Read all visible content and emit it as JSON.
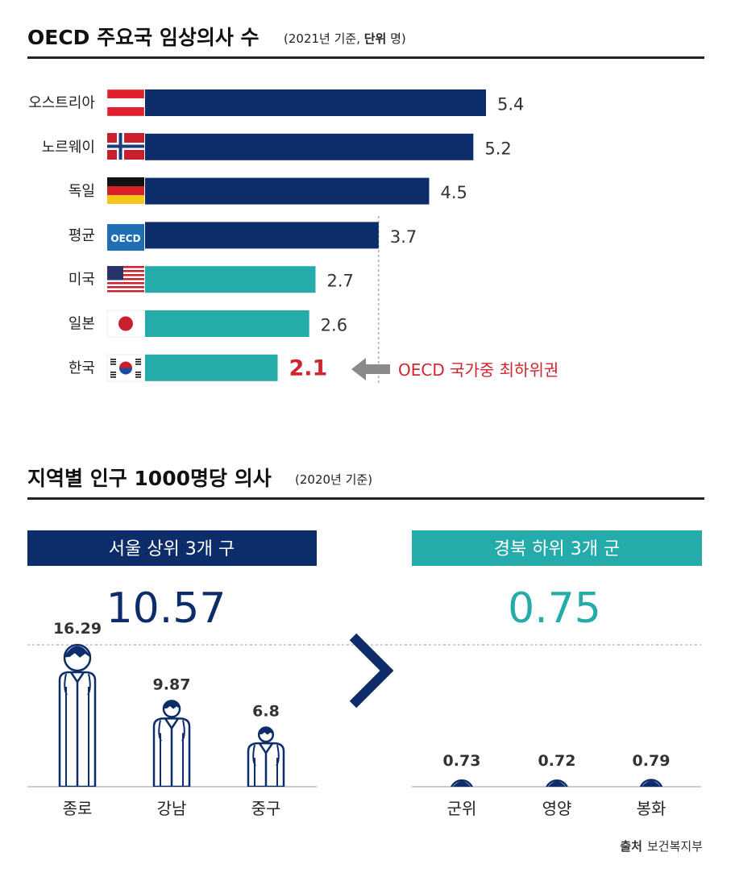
{
  "colors": {
    "navy": "#0d2d6a",
    "teal": "#25aba9",
    "red": "#d0252e",
    "arrow_gray": "#8a8a8a"
  },
  "section1": {
    "title": "OECD 주요국 임상의사 수",
    "subtitle_pre": "(2021년 기준, ",
    "subtitle_bold": "단위",
    "subtitle_post": " 명)",
    "annotation": "OECD 국가중 최하위권",
    "flag_icons": [
      "austria-flag-icon",
      "norway-flag-icon",
      "germany-flag-icon",
      "oecd-logo-icon",
      "usa-flag-icon",
      "japan-flag-icon",
      "korea-flag-icon"
    ],
    "oecd_logo_text": "OECD"
  },
  "section2": {
    "title": "지역별 인구 1000명당 의사",
    "subtitle": "(2020년 기준)",
    "seoul": {
      "header": "서울 상위 3개 구",
      "average": "10.57"
    },
    "gyeongbuk": {
      "header": "경북 하위 3개 군",
      "average": "0.75"
    },
    "icons": [
      "doctor-icon",
      "chevron-right-icon"
    ]
  },
  "source": {
    "label": "출처",
    "name": "보건복지부"
  },
  "chart_data": [
    {
      "type": "bar",
      "orientation": "horizontal",
      "title": "OECD 주요국 임상의사 수",
      "categories": [
        "오스트리아",
        "노르웨이",
        "독일",
        "평균",
        "미국",
        "일본",
        "한국"
      ],
      "values": [
        5.4,
        5.2,
        4.5,
        3.7,
        2.7,
        2.6,
        2.1
      ],
      "value_labels": [
        "5.4",
        "5.2",
        "4.5",
        "3.7",
        "2.7",
        "2.6",
        "2.1"
      ],
      "bar_colors": [
        "#0d2d6a",
        "#0d2d6a",
        "#0d2d6a",
        "#0d2d6a",
        "#25aba9",
        "#25aba9",
        "#25aba9"
      ],
      "reference_line": 3.7,
      "xlim": [
        0,
        5.6
      ]
    },
    {
      "type": "bar",
      "title": "지역별 인구 1000명당 의사",
      "groups": [
        {
          "categories": [
            "종로",
            "강남",
            "중구"
          ],
          "values": [
            16.29,
            9.87,
            6.8
          ],
          "value_labels": [
            "16.29",
            "9.87",
            "6.8"
          ],
          "average": 10.57
        },
        {
          "categories": [
            "군위",
            "영양",
            "봉화"
          ],
          "values": [
            0.73,
            0.72,
            0.79
          ],
          "value_labels": [
            "0.73",
            "0.72",
            "0.79"
          ],
          "average": 0.75
        }
      ],
      "ylim": [
        0,
        16.29
      ]
    }
  ]
}
